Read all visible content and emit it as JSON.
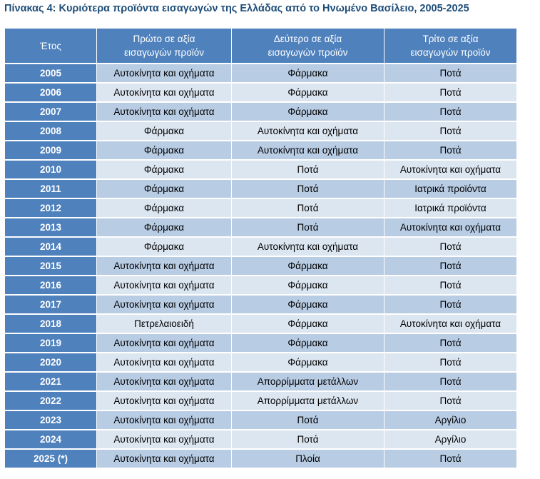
{
  "title": "Πίνακας 4: Κυριότερα προϊόντα εισαγωγών της Ελλάδας από το Ηνωμένο Βασίλειο, 2005-2025",
  "columns": {
    "year": "Έτος",
    "first": [
      "Πρώτο σε αξία",
      "εισαγωγών προϊόν"
    ],
    "second": [
      "Δεύτερο σε αξία",
      "εισαγωγών προϊόν"
    ],
    "third": [
      "Τρίτο σε αξία",
      "εισαγωγών προϊόν"
    ]
  },
  "rows": [
    {
      "year": "2005",
      "first": "Αυτοκίνητα και οχήματα",
      "second": "Φάρμακα",
      "third": "Ποτά"
    },
    {
      "year": "2006",
      "first": "Αυτοκίνητα και οχήματα",
      "second": "Φάρμακα",
      "third": "Ποτά"
    },
    {
      "year": "2007",
      "first": "Αυτοκίνητα και οχήματα",
      "second": "Φάρμακα",
      "third": "Ποτά"
    },
    {
      "year": "2008",
      "first": "Φάρμακα",
      "second": "Αυτοκίνητα και οχήματα",
      "third": "Ποτά"
    },
    {
      "year": "2009",
      "first": "Φάρμακα",
      "second": "Αυτοκίνητα και οχήματα",
      "third": "Ποτά"
    },
    {
      "year": "2010",
      "first": "Φάρμακα",
      "second": "Ποτά",
      "third": "Αυτοκίνητα και οχήματα"
    },
    {
      "year": "2011",
      "first": "Φάρμακα",
      "second": "Ποτά",
      "third": "Ιατρικά προϊόντα"
    },
    {
      "year": "2012",
      "first": "Φάρμακα",
      "second": "Ποτά",
      "third": "Ιατρικά προϊόντα"
    },
    {
      "year": "2013",
      "first": "Φάρμακα",
      "second": "Ποτά",
      "third": "Αυτοκίνητα και οχήματα"
    },
    {
      "year": "2014",
      "first": "Φάρμακα",
      "second": "Αυτοκίνητα και οχήματα",
      "third": "Ποτά"
    },
    {
      "year": "2015",
      "first": "Αυτοκίνητα και οχήματα",
      "second": "Φάρμακα",
      "third": "Ποτά"
    },
    {
      "year": "2016",
      "first": "Αυτοκίνητα και οχήματα",
      "second": "Φάρμακα",
      "third": "Ποτά"
    },
    {
      "year": "2017",
      "first": "Αυτοκίνητα και οχήματα",
      "second": "Φάρμακα",
      "third": "Ποτά"
    },
    {
      "year": "2018",
      "first": "Πετρελαιοειδή",
      "second": "Φάρμακα",
      "third": "Αυτοκίνητα και οχήματα"
    },
    {
      "year": "2019",
      "first": "Αυτοκίνητα και οχήματα",
      "second": "Φάρμακα",
      "third": "Ποτά"
    },
    {
      "year": "2020",
      "first": "Αυτοκίνητα και οχήματα",
      "second": "Φάρμακα",
      "third": "Ποτά"
    },
    {
      "year": "2021",
      "first": "Αυτοκίνητα και οχήματα",
      "second": "Απορρίμματα μετάλλων",
      "third": "Ποτά"
    },
    {
      "year": "2022",
      "first": "Αυτοκίνητα και οχήματα",
      "second": "Απορρίμματα μετάλλων",
      "third": "Ποτά"
    },
    {
      "year": "2023",
      "first": "Αυτοκίνητα και οχήματα",
      "second": "Ποτά",
      "third": "Αργίλιο"
    },
    {
      "year": "2024",
      "first": "Αυτοκίνητα και οχήματα",
      "second": "Ποτά",
      "third": "Αργίλιο"
    },
    {
      "year": "2025 (*)",
      "first": "Αυτοκίνητα και οχήματα",
      "second": "Πλοία",
      "third": "Ποτά"
    }
  ]
}
